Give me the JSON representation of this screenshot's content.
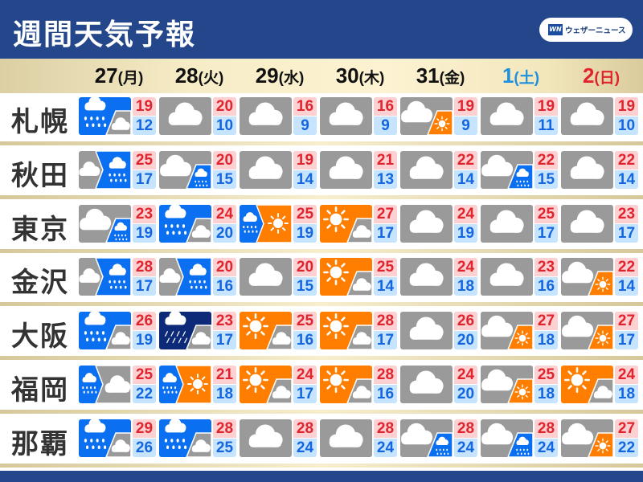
{
  "header": {
    "title": "週間天気予報",
    "logo_mark": "WN",
    "logo_text": "ウェザーニュース"
  },
  "colors": {
    "header_bg": "#24468a",
    "rain": "#0a6ff0",
    "heavy_rain": "#0c2a78",
    "sunny": "#ff7e00",
    "cloudy": "#9a9a9a",
    "high_temp": "#e0242e",
    "low_temp": "#1466e0",
    "saturday": "#1e90e0",
    "sunday": "#e0242e"
  },
  "dates": [
    {
      "day": "27",
      "weekday": "(月)",
      "color": "#111"
    },
    {
      "day": "28",
      "weekday": "(火)",
      "color": "#111"
    },
    {
      "day": "29",
      "weekday": "(水)",
      "color": "#111"
    },
    {
      "day": "30",
      "weekday": "(木)",
      "color": "#111"
    },
    {
      "day": "31",
      "weekday": "(金)",
      "color": "#111"
    },
    {
      "day": "1",
      "weekday": "(土)",
      "color": "#1e90e0"
    },
    {
      "day": "2",
      "weekday": "(日)",
      "color": "#e0242e"
    }
  ],
  "cities": [
    {
      "name": "札幌",
      "days": [
        {
          "icon": "rain-sometimes-cloud",
          "hi": "19",
          "lo": "12"
        },
        {
          "icon": "cloud",
          "hi": "20",
          "lo": "10"
        },
        {
          "icon": "cloud",
          "hi": "16",
          "lo": "9"
        },
        {
          "icon": "cloud",
          "hi": "16",
          "lo": "9"
        },
        {
          "icon": "cloud-sometimes-sun",
          "hi": "19",
          "lo": "9"
        },
        {
          "icon": "cloud",
          "hi": "19",
          "lo": "11"
        },
        {
          "icon": "cloud",
          "hi": "19",
          "lo": "10"
        }
      ]
    },
    {
      "name": "秋田",
      "days": [
        {
          "icon": "cloud-then-rain",
          "hi": "25",
          "lo": "17"
        },
        {
          "icon": "cloud-sometimes-rain",
          "hi": "20",
          "lo": "15"
        },
        {
          "icon": "cloud",
          "hi": "19",
          "lo": "14"
        },
        {
          "icon": "cloud",
          "hi": "21",
          "lo": "13"
        },
        {
          "icon": "cloud",
          "hi": "22",
          "lo": "14"
        },
        {
          "icon": "cloud-sometimes-rain",
          "hi": "22",
          "lo": "15"
        },
        {
          "icon": "cloud",
          "hi": "22",
          "lo": "14"
        }
      ]
    },
    {
      "name": "東京",
      "days": [
        {
          "icon": "cloud-sometimes-rain",
          "hi": "23",
          "lo": "19"
        },
        {
          "icon": "rain-sometimes-cloud",
          "hi": "24",
          "lo": "20"
        },
        {
          "icon": "rain-then-sun",
          "hi": "25",
          "lo": "19"
        },
        {
          "icon": "sun-sometimes-cloud",
          "hi": "27",
          "lo": "17"
        },
        {
          "icon": "cloud",
          "hi": "24",
          "lo": "19"
        },
        {
          "icon": "cloud",
          "hi": "25",
          "lo": "17"
        },
        {
          "icon": "cloud",
          "hi": "23",
          "lo": "17"
        }
      ]
    },
    {
      "name": "金沢",
      "days": [
        {
          "icon": "cloud-then-rain",
          "hi": "28",
          "lo": "17"
        },
        {
          "icon": "cloud-then-rain",
          "hi": "20",
          "lo": "16"
        },
        {
          "icon": "cloud",
          "hi": "20",
          "lo": "15"
        },
        {
          "icon": "sun-sometimes-cloud",
          "hi": "25",
          "lo": "14"
        },
        {
          "icon": "cloud",
          "hi": "24",
          "lo": "18"
        },
        {
          "icon": "cloud",
          "hi": "23",
          "lo": "16"
        },
        {
          "icon": "cloud-sometimes-sun",
          "hi": "22",
          "lo": "14"
        }
      ]
    },
    {
      "name": "大阪",
      "days": [
        {
          "icon": "rain-sometimes-cloud",
          "hi": "26",
          "lo": "19"
        },
        {
          "icon": "heavyrain-sometimes-cloud",
          "hi": "23",
          "lo": "17"
        },
        {
          "icon": "sun-sometimes-cloud",
          "hi": "25",
          "lo": "16"
        },
        {
          "icon": "sun-sometimes-cloud",
          "hi": "28",
          "lo": "17"
        },
        {
          "icon": "cloud",
          "hi": "26",
          "lo": "20"
        },
        {
          "icon": "cloud-sometimes-sun",
          "hi": "27",
          "lo": "18"
        },
        {
          "icon": "cloud-sometimes-sun",
          "hi": "27",
          "lo": "17"
        }
      ]
    },
    {
      "name": "福岡",
      "days": [
        {
          "icon": "rain-then-cloud",
          "hi": "25",
          "lo": "22"
        },
        {
          "icon": "rain-then-sun",
          "hi": "21",
          "lo": "18"
        },
        {
          "icon": "sun-sometimes-cloud",
          "hi": "24",
          "lo": "17"
        },
        {
          "icon": "sun-sometimes-cloud",
          "hi": "28",
          "lo": "16"
        },
        {
          "icon": "cloud",
          "hi": "24",
          "lo": "20"
        },
        {
          "icon": "cloud-sometimes-sun",
          "hi": "25",
          "lo": "18"
        },
        {
          "icon": "sun-sometimes-cloud",
          "hi": "24",
          "lo": "18"
        }
      ]
    },
    {
      "name": "那覇",
      "days": [
        {
          "icon": "rain-sometimes-cloud",
          "hi": "29",
          "lo": "26"
        },
        {
          "icon": "rain-sometimes-cloud",
          "hi": "28",
          "lo": "25"
        },
        {
          "icon": "cloud",
          "hi": "28",
          "lo": "24"
        },
        {
          "icon": "cloud",
          "hi": "28",
          "lo": "24"
        },
        {
          "icon": "cloud-sometimes-rain",
          "hi": "28",
          "lo": "24"
        },
        {
          "icon": "cloud-sometimes-rain",
          "hi": "28",
          "lo": "24"
        },
        {
          "icon": "cloud-sometimes-sun",
          "hi": "27",
          "lo": "22"
        }
      ]
    }
  ]
}
